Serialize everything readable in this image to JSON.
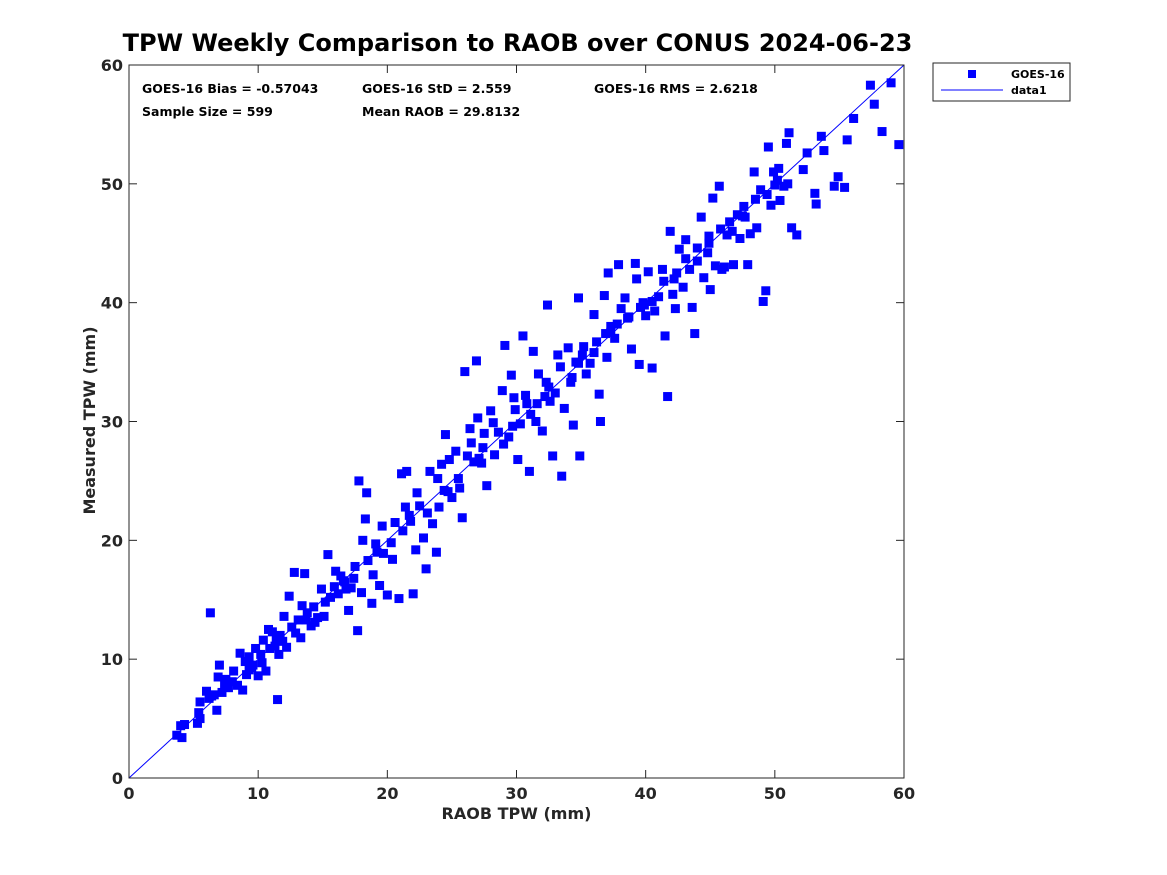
{
  "chart_data": {
    "type": "scatter",
    "title": "TPW Weekly Comparison to RAOB over CONUS 2024-06-23",
    "xlabel": "RAOB TPW (mm)",
    "ylabel": "Measured TPW (mm)",
    "xlim": [
      0,
      60
    ],
    "ylim": [
      0,
      60
    ],
    "xticks": [
      "0",
      "10",
      "20",
      "30",
      "40",
      "50",
      "60"
    ],
    "yticks": [
      "0",
      "10",
      "20",
      "30",
      "40",
      "50",
      "60"
    ],
    "legend": {
      "position": "outside-top-right",
      "entries": [
        "GOES-16",
        "data1"
      ]
    },
    "stats": {
      "bias": "GOES-16 Bias = -0.57043",
      "std": "GOES-16 StD = 2.559",
      "rms": "GOES-16 RMS = 2.6218",
      "sample": "Sample Size = 599",
      "mean": "Mean RAOB = 29.8132"
    },
    "series": [
      {
        "name": "GOES-16",
        "marker": "square",
        "color": "#0000ff",
        "points": [
          [
            3.7,
            3.6
          ],
          [
            4.0,
            4.4
          ],
          [
            4.1,
            3.4
          ],
          [
            4.3,
            4.5
          ],
          [
            5.3,
            4.6
          ],
          [
            5.4,
            5.5
          ],
          [
            5.5,
            6.4
          ],
          [
            6.0,
            7.3
          ],
          [
            6.3,
            13.9
          ],
          [
            6.6,
            7.0
          ],
          [
            6.8,
            5.7
          ],
          [
            6.9,
            8.5
          ],
          [
            7.0,
            9.5
          ],
          [
            7.2,
            7.2
          ],
          [
            7.4,
            7.9
          ],
          [
            7.7,
            7.6
          ],
          [
            8.0,
            8.1
          ],
          [
            8.4,
            7.8
          ],
          [
            8.6,
            10.5
          ],
          [
            9.0,
            9.8
          ],
          [
            9.1,
            8.7
          ],
          [
            9.3,
            10.2
          ],
          [
            9.5,
            9.3
          ],
          [
            9.8,
            10.9
          ],
          [
            10.0,
            8.6
          ],
          [
            10.2,
            10.4
          ],
          [
            10.4,
            11.6
          ],
          [
            10.6,
            9.0
          ],
          [
            10.9,
            10.9
          ],
          [
            11.1,
            12.3
          ],
          [
            11.3,
            11.1
          ],
          [
            11.5,
            6.6
          ],
          [
            11.7,
            12.0
          ],
          [
            11.9,
            11.5
          ],
          [
            12.2,
            11.0
          ],
          [
            12.4,
            15.3
          ],
          [
            12.6,
            12.7
          ],
          [
            12.8,
            17.3
          ],
          [
            13.1,
            13.3
          ],
          [
            13.3,
            11.8
          ],
          [
            13.6,
            17.2
          ],
          [
            13.8,
            13.9
          ],
          [
            14.1,
            12.8
          ],
          [
            14.3,
            14.4
          ],
          [
            14.6,
            13.5
          ],
          [
            14.9,
            15.9
          ],
          [
            15.1,
            13.6
          ],
          [
            15.4,
            18.8
          ],
          [
            15.6,
            15.2
          ],
          [
            15.9,
            16.1
          ],
          [
            16.2,
            15.5
          ],
          [
            16.4,
            17.0
          ],
          [
            16.7,
            16.5
          ],
          [
            17.0,
            14.1
          ],
          [
            17.2,
            16.0
          ],
          [
            17.5,
            17.8
          ],
          [
            17.7,
            12.4
          ],
          [
            17.8,
            25.0
          ],
          [
            18.0,
            15.6
          ],
          [
            18.3,
            21.8
          ],
          [
            18.4,
            24.0
          ],
          [
            18.5,
            18.3
          ],
          [
            18.8,
            14.7
          ],
          [
            19.1,
            19.7
          ],
          [
            19.4,
            16.2
          ],
          [
            19.7,
            18.9
          ],
          [
            20.0,
            15.4
          ],
          [
            20.3,
            19.8
          ],
          [
            20.6,
            21.5
          ],
          [
            20.9,
            15.1
          ],
          [
            21.1,
            25.6
          ],
          [
            21.2,
            20.8
          ],
          [
            21.5,
            25.8
          ],
          [
            21.7,
            22.1
          ],
          [
            22.0,
            15.5
          ],
          [
            22.2,
            19.2
          ],
          [
            22.5,
            22.9
          ],
          [
            22.8,
            20.2
          ],
          [
            23.0,
            17.6
          ],
          [
            23.3,
            25.8
          ],
          [
            23.5,
            21.4
          ],
          [
            23.8,
            19.0
          ],
          [
            24.0,
            22.8
          ],
          [
            24.2,
            26.4
          ],
          [
            24.5,
            28.9
          ],
          [
            24.7,
            24.1
          ],
          [
            25.0,
            23.6
          ],
          [
            25.3,
            27.5
          ],
          [
            25.5,
            25.2
          ],
          [
            25.8,
            21.9
          ],
          [
            26.0,
            34.2
          ],
          [
            26.2,
            27.1
          ],
          [
            26.4,
            29.4
          ],
          [
            26.7,
            26.6
          ],
          [
            26.9,
            35.1
          ],
          [
            27.0,
            30.3
          ],
          [
            27.3,
            26.5
          ],
          [
            27.5,
            29.0
          ],
          [
            27.7,
            24.6
          ],
          [
            28.0,
            30.9
          ],
          [
            28.3,
            27.2
          ],
          [
            28.6,
            29.1
          ],
          [
            28.9,
            32.6
          ],
          [
            29.1,
            36.4
          ],
          [
            29.4,
            28.7
          ],
          [
            29.6,
            33.9
          ],
          [
            29.8,
            32.0
          ],
          [
            30.1,
            26.8
          ],
          [
            30.3,
            29.8
          ],
          [
            30.5,
            37.2
          ],
          [
            30.8,
            31.5
          ],
          [
            31.0,
            25.8
          ],
          [
            31.1,
            30.6
          ],
          [
            31.3,
            35.9
          ],
          [
            31.5,
            30.0
          ],
          [
            31.7,
            34.0
          ],
          [
            32.0,
            29.2
          ],
          [
            32.3,
            33.3
          ],
          [
            32.4,
            39.8
          ],
          [
            32.6,
            31.7
          ],
          [
            32.8,
            27.1
          ],
          [
            33.0,
            32.4
          ],
          [
            33.2,
            35.6
          ],
          [
            33.5,
            25.4
          ],
          [
            33.7,
            31.1
          ],
          [
            34.0,
            36.2
          ],
          [
            34.2,
            33.3
          ],
          [
            34.4,
            29.7
          ],
          [
            34.6,
            35.0
          ],
          [
            34.8,
            40.4
          ],
          [
            34.9,
            27.1
          ],
          [
            35.2,
            36.3
          ],
          [
            35.4,
            34.0
          ],
          [
            35.7,
            34.9
          ],
          [
            36.0,
            39.0
          ],
          [
            36.2,
            36.7
          ],
          [
            36.4,
            32.3
          ],
          [
            36.5,
            30.0
          ],
          [
            36.8,
            40.6
          ],
          [
            37.0,
            35.4
          ],
          [
            37.1,
            42.5
          ],
          [
            37.3,
            38.0
          ],
          [
            37.6,
            37.0
          ],
          [
            37.9,
            43.2
          ],
          [
            38.1,
            39.5
          ],
          [
            38.4,
            40.4
          ],
          [
            38.6,
            38.7
          ],
          [
            38.9,
            36.1
          ],
          [
            39.2,
            43.3
          ],
          [
            39.3,
            42.0
          ],
          [
            39.5,
            34.8
          ],
          [
            39.8,
            40.0
          ],
          [
            40.0,
            38.9
          ],
          [
            40.2,
            42.6
          ],
          [
            40.5,
            34.5
          ],
          [
            40.7,
            39.3
          ],
          [
            41.0,
            40.5
          ],
          [
            41.3,
            42.8
          ],
          [
            41.5,
            37.2
          ],
          [
            41.7,
            32.1
          ],
          [
            41.9,
            46.0
          ],
          [
            42.1,
            40.7
          ],
          [
            42.3,
            39.5
          ],
          [
            42.6,
            44.5
          ],
          [
            42.9,
            41.3
          ],
          [
            43.1,
            45.3
          ],
          [
            43.4,
            42.8
          ],
          [
            43.6,
            39.6
          ],
          [
            43.8,
            37.4
          ],
          [
            44.0,
            44.6
          ],
          [
            44.3,
            47.2
          ],
          [
            44.5,
            42.1
          ],
          [
            44.8,
            44.2
          ],
          [
            45.0,
            41.1
          ],
          [
            45.2,
            48.8
          ],
          [
            45.4,
            43.1
          ],
          [
            45.7,
            49.8
          ],
          [
            45.9,
            42.8
          ],
          [
            46.1,
            43.0
          ],
          [
            46.3,
            45.7
          ],
          [
            46.5,
            46.8
          ],
          [
            46.8,
            43.2
          ],
          [
            47.1,
            47.4
          ],
          [
            47.3,
            45.4
          ],
          [
            47.6,
            48.1
          ],
          [
            47.9,
            43.2
          ],
          [
            48.1,
            45.8
          ],
          [
            48.4,
            51.0
          ],
          [
            48.6,
            46.3
          ],
          [
            48.9,
            49.5
          ],
          [
            49.1,
            40.1
          ],
          [
            49.3,
            41.0
          ],
          [
            49.5,
            53.1
          ],
          [
            49.7,
            48.2
          ],
          [
            49.9,
            51.0
          ],
          [
            50.2,
            50.3
          ],
          [
            50.4,
            48.6
          ],
          [
            50.7,
            49.8
          ],
          [
            50.9,
            53.4
          ],
          [
            51.1,
            54.3
          ],
          [
            51.3,
            46.3
          ],
          [
            51.7,
            45.7
          ],
          [
            52.2,
            51.2
          ],
          [
            52.5,
            52.6
          ],
          [
            53.1,
            49.2
          ],
          [
            53.2,
            48.3
          ],
          [
            53.6,
            54.0
          ],
          [
            53.8,
            52.8
          ],
          [
            54.6,
            49.8
          ],
          [
            54.9,
            50.6
          ],
          [
            55.4,
            49.7
          ],
          [
            55.6,
            53.7
          ],
          [
            56.1,
            55.5
          ],
          [
            57.4,
            58.3
          ],
          [
            57.7,
            56.7
          ],
          [
            58.3,
            54.4
          ],
          [
            59.0,
            58.5
          ],
          [
            59.6,
            53.3
          ],
          [
            5.5,
            5.0
          ],
          [
            6.2,
            6.7
          ],
          [
            7.5,
            8.3
          ],
          [
            8.1,
            9.0
          ],
          [
            8.8,
            7.4
          ],
          [
            9.6,
            9.5
          ],
          [
            10.3,
            9.7
          ],
          [
            10.8,
            12.5
          ],
          [
            11.6,
            10.4
          ],
          [
            12.0,
            13.6
          ],
          [
            12.9,
            12.2
          ],
          [
            13.4,
            14.5
          ],
          [
            14.4,
            13.1
          ],
          [
            15.2,
            14.8
          ],
          [
            16.0,
            17.4
          ],
          [
            16.8,
            15.9
          ],
          [
            17.4,
            16.8
          ],
          [
            18.1,
            20.0
          ],
          [
            18.9,
            17.1
          ],
          [
            19.6,
            21.2
          ],
          [
            20.4,
            18.4
          ],
          [
            21.4,
            22.8
          ],
          [
            22.3,
            24.0
          ],
          [
            23.1,
            22.3
          ],
          [
            23.9,
            25.2
          ],
          [
            24.8,
            26.8
          ],
          [
            25.6,
            24.4
          ],
          [
            26.5,
            28.2
          ],
          [
            27.4,
            27.8
          ],
          [
            28.2,
            29.9
          ],
          [
            29.0,
            28.1
          ],
          [
            29.9,
            31.0
          ],
          [
            30.7,
            32.2
          ],
          [
            31.6,
            31.5
          ],
          [
            32.5,
            32.9
          ],
          [
            33.4,
            34.6
          ],
          [
            34.3,
            33.7
          ],
          [
            35.1,
            35.6
          ],
          [
            36.0,
            35.8
          ],
          [
            36.9,
            37.4
          ],
          [
            37.8,
            38.2
          ],
          [
            38.7,
            38.8
          ],
          [
            39.6,
            39.6
          ],
          [
            40.5,
            40.1
          ],
          [
            41.4,
            41.8
          ],
          [
            42.2,
            42.0
          ],
          [
            43.1,
            43.7
          ],
          [
            44.0,
            43.5
          ],
          [
            44.9,
            45.6
          ],
          [
            45.8,
            46.2
          ],
          [
            46.7,
            46.0
          ],
          [
            47.7,
            47.2
          ],
          [
            48.5,
            48.7
          ],
          [
            49.4,
            49.1
          ],
          [
            50.3,
            51.3
          ],
          [
            51.0,
            50.0
          ],
          [
            6.4,
            6.9
          ],
          [
            9.3,
            9.1
          ],
          [
            11.4,
            11.8
          ],
          [
            13.7,
            13.3
          ],
          [
            16.6,
            16.6
          ],
          [
            19.2,
            19.0
          ],
          [
            21.8,
            21.6
          ],
          [
            24.4,
            24.2
          ],
          [
            27.1,
            26.9
          ],
          [
            29.7,
            29.6
          ],
          [
            32.2,
            32.1
          ],
          [
            34.8,
            34.9
          ],
          [
            37.3,
            37.5
          ],
          [
            39.9,
            39.8
          ],
          [
            42.4,
            42.5
          ],
          [
            44.9,
            45.0
          ],
          [
            47.5,
            47.3
          ],
          [
            50.0,
            49.9
          ]
        ]
      },
      {
        "name": "data1",
        "type": "line",
        "color": "#0000ff",
        "points": [
          [
            0,
            0
          ],
          [
            60,
            60
          ]
        ]
      }
    ]
  }
}
